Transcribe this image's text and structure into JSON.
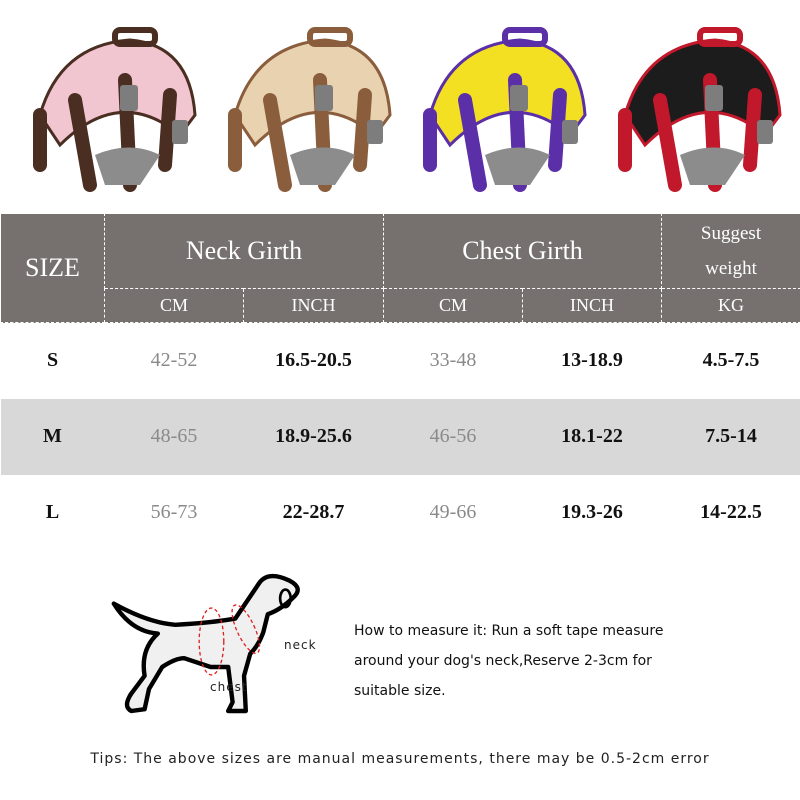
{
  "harnesses": [
    {
      "name": "pink",
      "main": "#f2c6d0",
      "strap": "#4a2e22"
    },
    {
      "name": "beige",
      "main": "#e9d2b0",
      "strap": "#8a5e3c"
    },
    {
      "name": "yellow",
      "main": "#f3e022",
      "strap": "#5a2fa8"
    },
    {
      "name": "red",
      "main": "#1c1c1c",
      "strap": "#c2182b"
    }
  ],
  "table": {
    "size_header": "SIZE",
    "groups": [
      "Neck Girth",
      "Chest Girth"
    ],
    "weight_header": [
      "Suggest",
      "weight"
    ],
    "subheaders": [
      "CM",
      "INCH",
      "CM",
      "INCH",
      "KG"
    ],
    "rows": [
      {
        "size": "S",
        "neck_cm": "42-52",
        "neck_inch": "16.5-20.5",
        "chest_cm": "33-48",
        "chest_inch": "13-18.9",
        "kg": "4.5-7.5"
      },
      {
        "size": "M",
        "neck_cm": "48-65",
        "neck_inch": "18.9-25.6",
        "chest_cm": "46-56",
        "chest_inch": "18.1-22",
        "kg": "7.5-14"
      },
      {
        "size": "L",
        "neck_cm": "56-73",
        "neck_inch": "22-28.7",
        "chest_cm": "49-66",
        "chest_inch": "19.3-26",
        "kg": "14-22.5"
      }
    ],
    "header_color": "#76706f"
  },
  "diagram": {
    "neck_label": "neck",
    "chest_label": "chest"
  },
  "how_to": [
    "How to measure it: Run a soft tape measure",
    "around your dog's neck,Reserve 2-3cm for",
    "suitable size."
  ],
  "tips": "Tips: The above sizes are manual measurements, there may be 0.5-2cm error"
}
